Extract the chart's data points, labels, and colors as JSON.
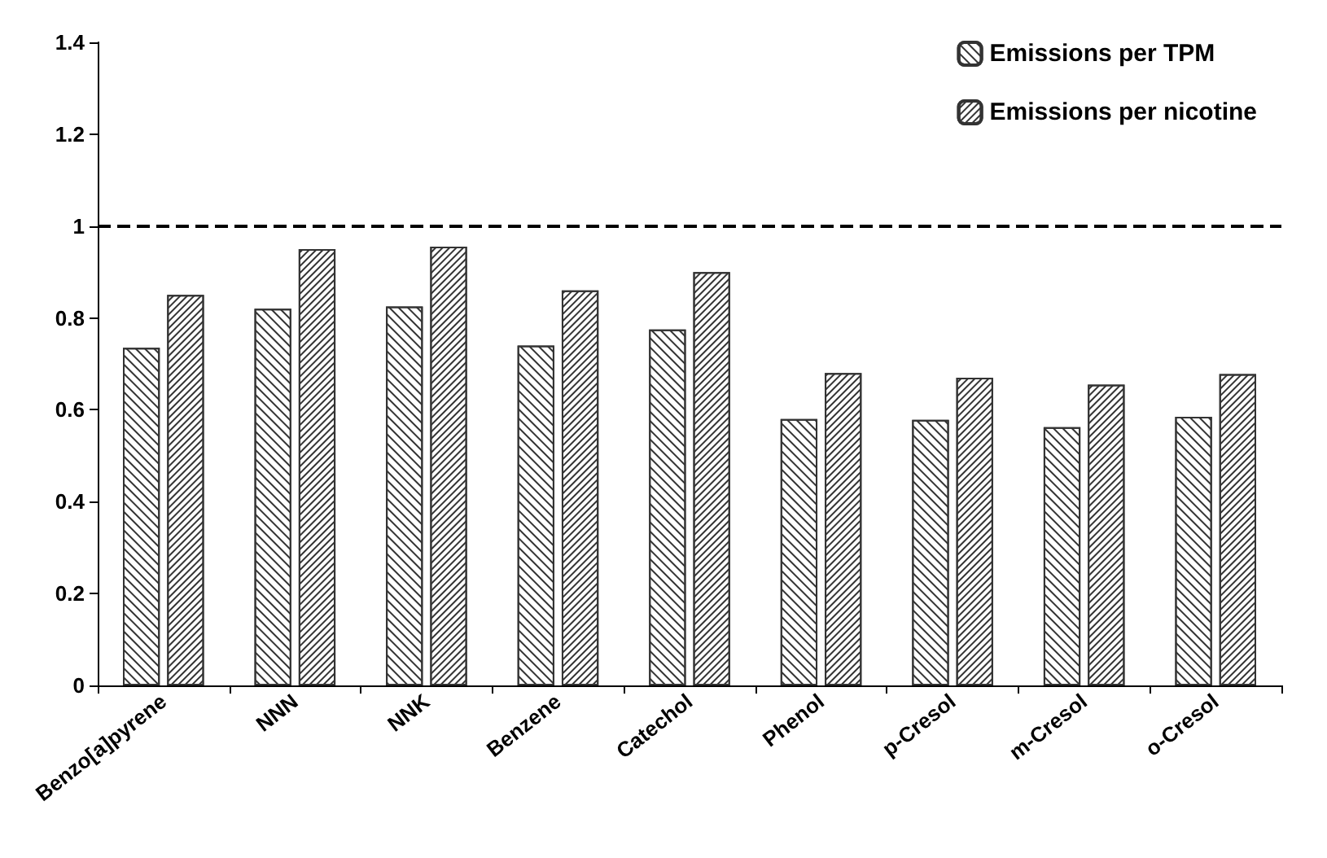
{
  "chart_data": {
    "type": "bar",
    "categories": [
      "Benzo[a]pyrene",
      "NNN",
      "NNK",
      "Benzene",
      "Catechol",
      "Phenol",
      "p-Cresol",
      "m-Cresol",
      "o-Cresol"
    ],
    "series": [
      {
        "name": "Emissions per TPM",
        "color": "#333333",
        "values": [
          0.735,
          0.82,
          0.825,
          0.74,
          0.775,
          0.58,
          0.578,
          0.562,
          0.585
        ]
      },
      {
        "name": "Emissions per nicotine",
        "color": "#333333",
        "values": [
          0.85,
          0.95,
          0.955,
          0.86,
          0.9,
          0.68,
          0.67,
          0.655,
          0.678
        ]
      }
    ],
    "ylim": [
      0,
      1.4
    ],
    "yticks": [
      0,
      0.2,
      0.4,
      0.6,
      0.8,
      1,
      1.2,
      1.4
    ],
    "grid": false,
    "legend": "top right",
    "ref_lines": [
      {
        "axis": "y",
        "value": 1,
        "color": "#000000",
        "line_style": "dashed"
      }
    ]
  }
}
